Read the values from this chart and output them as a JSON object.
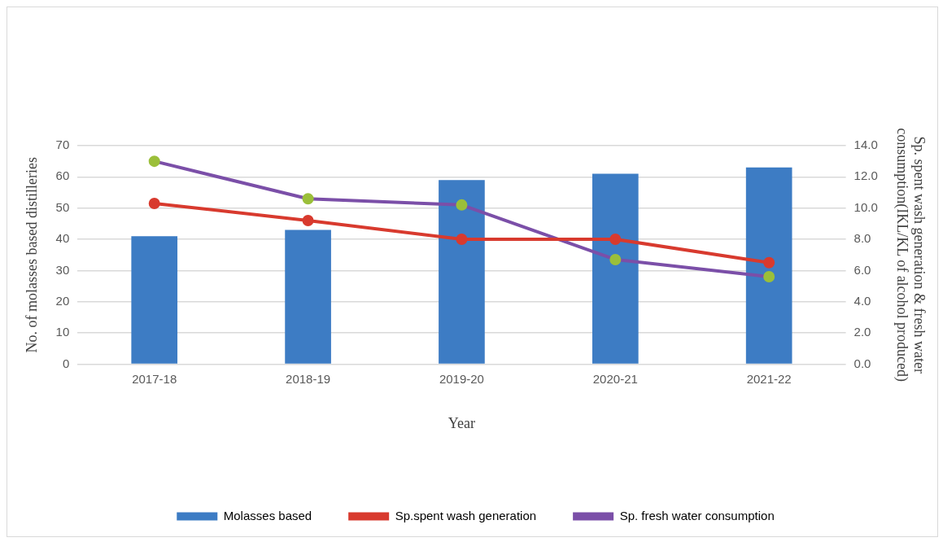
{
  "chart_data": {
    "type": "bar",
    "xlabel": "Year",
    "ylabel": "No. of molasses based distilleries",
    "y2label": "Sp. spent wash generation & fresh water\nconsumption(IKL/KL of alcohol produced)",
    "categories": [
      "2017-18",
      "2018-19",
      "2019-20",
      "2020-21",
      "2021-22"
    ],
    "series": [
      {
        "name": "Molasses based",
        "color": "#3d7cc4",
        "values": [
          41,
          43,
          59,
          61,
          63
        ]
      },
      {
        "name": "Sp.spent wash generation",
        "type": "line",
        "axis": "y2",
        "color": "#d83a2e",
        "values": [
          10.3,
          9.2,
          8.0,
          8.0,
          6.5
        ]
      },
      {
        "name": "Sp. fresh water consumption",
        "type": "line",
        "axis": "y2",
        "color": "#7b4fa8",
        "colors": [
          "#9bbf3a",
          "#9bbf3a",
          "#9bbf3a",
          "#9bbf3a",
          "#9bbf3a"
        ],
        "values": [
          13.0,
          10.6,
          10.2,
          6.7,
          5.6
        ]
      }
    ],
    "ylim": [
      0,
      70
    ],
    "yticks": [
      0,
      10,
      20,
      30,
      40,
      50,
      60,
      70
    ],
    "y2lim": [
      0,
      14
    ],
    "y2ticks": [
      {
        "value": 0,
        "label": "0.0"
      },
      {
        "value": 2,
        "label": "2.0"
      },
      {
        "value": 4,
        "label": "4.0"
      },
      {
        "value": 6,
        "label": "6.0"
      },
      {
        "value": 8,
        "label": "8.0"
      },
      {
        "value": 10,
        "label": "10.0"
      },
      {
        "value": 12,
        "label": "12.0"
      },
      {
        "value": 14,
        "label": "14.0"
      }
    ],
    "grid": "y",
    "legend": "bottom",
    "marker": "circle",
    "line_style": "solid"
  }
}
